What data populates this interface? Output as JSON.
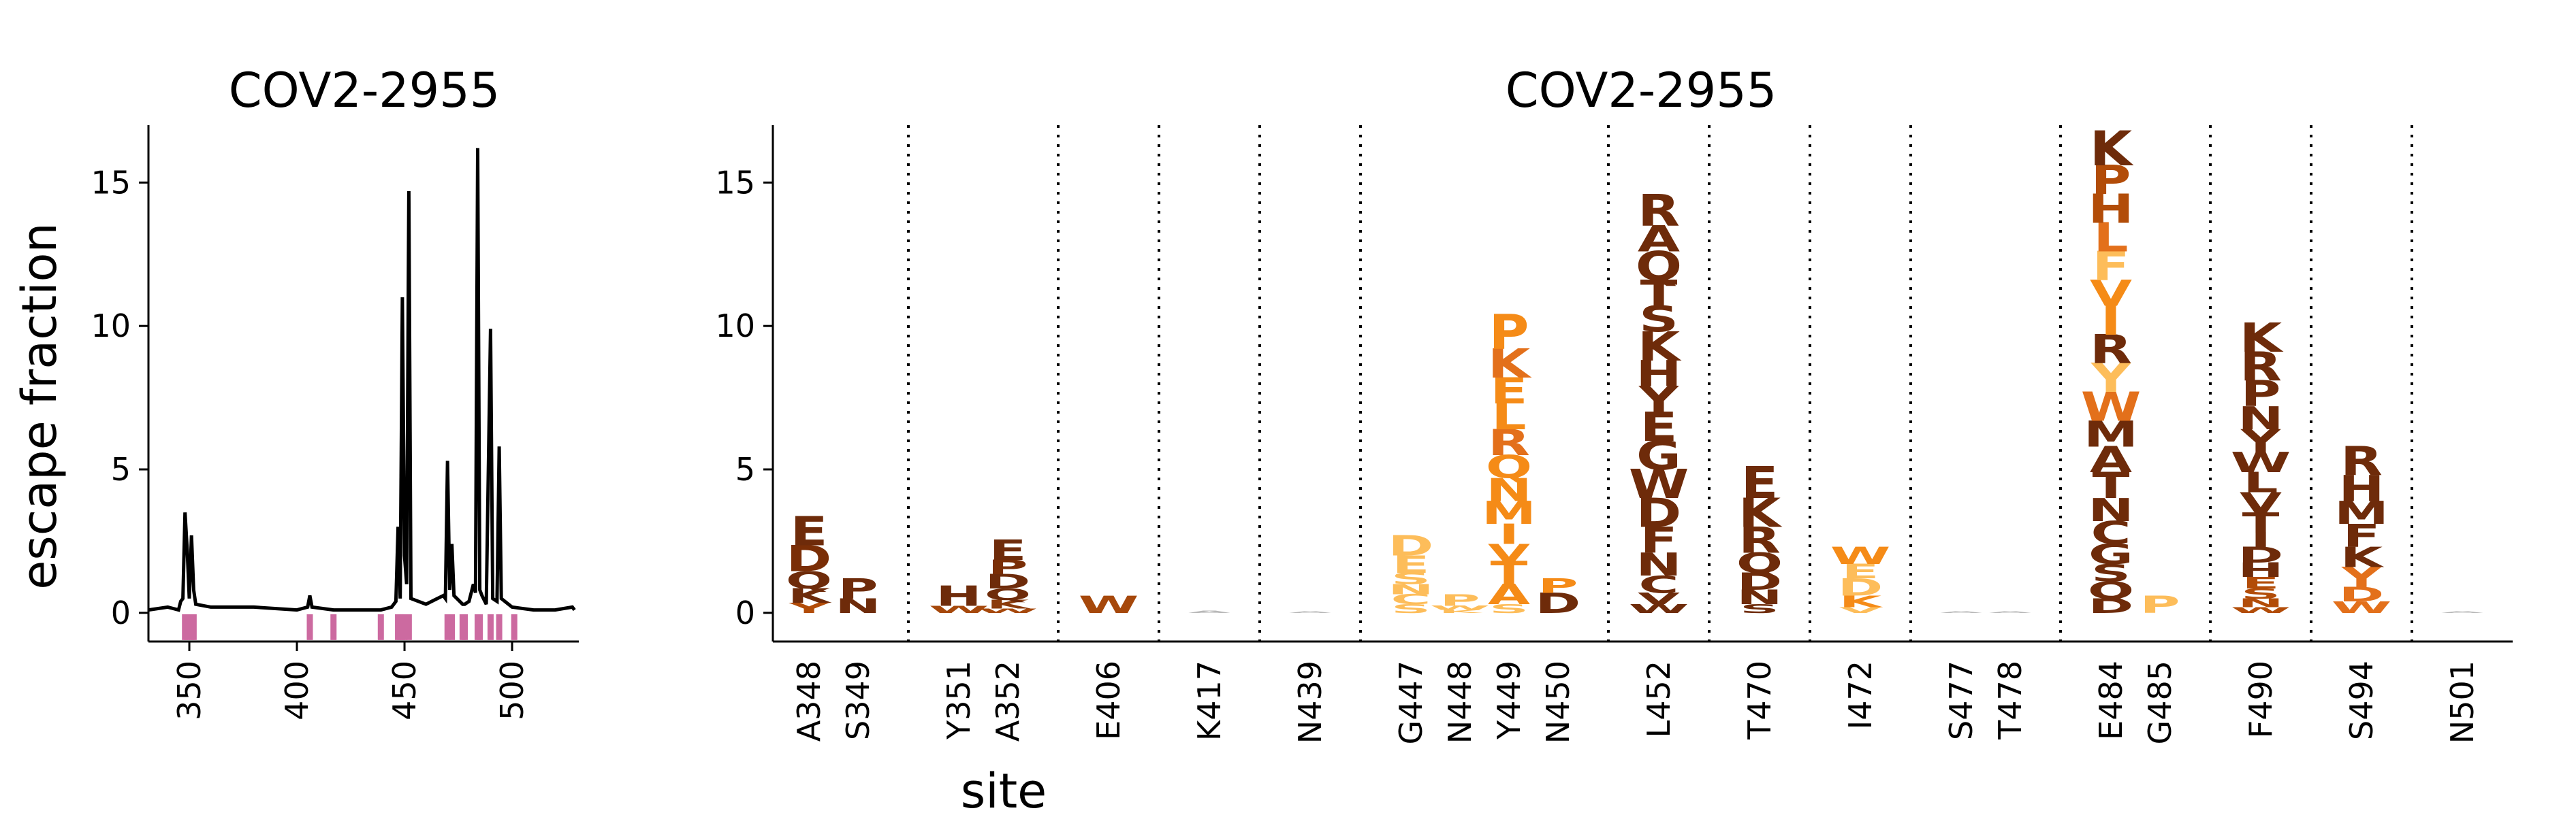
{
  "chart_data": [
    {
      "type": "line",
      "title": "COV2-2955",
      "ylabel": "escape fraction",
      "xlim": [
        331,
        531
      ],
      "ylim": [
        -1,
        17
      ],
      "xticks": [
        "350",
        "400",
        "450",
        "500"
      ],
      "yticks": [
        "0",
        "5",
        "10",
        "15"
      ],
      "series": [
        {
          "name": "",
          "color": "#000000",
          "points": [
            [
              331,
              0.1
            ],
            [
              340,
              0.2
            ],
            [
              345,
              0.1
            ],
            [
              346,
              0.4
            ],
            [
              347,
              0.5
            ],
            [
              348,
              3.5
            ],
            [
              349,
              2.2
            ],
            [
              350,
              0.5
            ],
            [
              351,
              2.7
            ],
            [
              352,
              0.8
            ],
            [
              353,
              0.3
            ],
            [
              360,
              0.2
            ],
            [
              380,
              0.2
            ],
            [
              400,
              0.1
            ],
            [
              405,
              0.2
            ],
            [
              406,
              0.6
            ],
            [
              407,
              0.2
            ],
            [
              417,
              0.1
            ],
            [
              439,
              0.1
            ],
            [
              444,
              0.2
            ],
            [
              446,
              0.4
            ],
            [
              447,
              3.0
            ],
            [
              448,
              0.5
            ],
            [
              449,
              11.0
            ],
            [
              450,
              2.0
            ],
            [
              451,
              1.0
            ],
            [
              452,
              14.7
            ],
            [
              453,
              0.5
            ],
            [
              460,
              0.3
            ],
            [
              468,
              0.6
            ],
            [
              469,
              0.5
            ],
            [
              470,
              5.3
            ],
            [
              471,
              0.8
            ],
            [
              472,
              2.4
            ],
            [
              473,
              0.6
            ],
            [
              477,
              0.3
            ],
            [
              478,
              0.3
            ],
            [
              480,
              0.4
            ],
            [
              482,
              1.0
            ],
            [
              483,
              0.7
            ],
            [
              484,
              16.2
            ],
            [
              485,
              0.8
            ],
            [
              486,
              0.6
            ],
            [
              488,
              0.3
            ],
            [
              490,
              9.9
            ],
            [
              491,
              0.5
            ],
            [
              493,
              0.4
            ],
            [
              494,
              5.8
            ],
            [
              495,
              0.5
            ],
            [
              500,
              0.2
            ],
            [
              510,
              0.1
            ],
            [
              520,
              0.1
            ],
            [
              528,
              0.2
            ],
            [
              529,
              0.1
            ]
          ]
        }
      ],
      "highlight_color": "#cc6aa0",
      "highlighted_sites": [
        348,
        349,
        351,
        352,
        406,
        417,
        439,
        447,
        448,
        449,
        450,
        452,
        470,
        472,
        477,
        478,
        484,
        485,
        490,
        494,
        501
      ]
    },
    {
      "type": "logo",
      "title": "COV2-2955",
      "xlabel": "site",
      "ylim": [
        -1,
        17
      ],
      "yticks": [
        "0",
        "5",
        "10",
        "15"
      ],
      "sites": [
        {
          "label": "A348",
          "group": 0,
          "letters": [
            [
              "Y",
              0.35,
              "#b24c08"
            ],
            [
              "K",
              0.5,
              "#6e2b0a"
            ],
            [
              "Q",
              0.6,
              "#6e2b0a"
            ],
            [
              "D",
              0.9,
              "#7a2e06"
            ],
            [
              "E",
              1.0,
              "#6e2b0a"
            ]
          ]
        },
        {
          "label": "S349",
          "group": 0,
          "letters": [
            [
              "N",
              0.5,
              "#6e2b0a"
            ],
            [
              "P",
              0.7,
              "#6e2b0a"
            ]
          ]
        },
        {
          "label": "Y351",
          "group": 1,
          "letters": [
            [
              "W",
              0.25,
              "#a6480b"
            ],
            [
              "H",
              0.7,
              "#6e2b0a"
            ]
          ]
        },
        {
          "label": "A352",
          "group": 1,
          "letters": [
            [
              "W",
              0.15,
              "#a6480b"
            ],
            [
              "K",
              0.3,
              "#8a3a0a"
            ],
            [
              "Q",
              0.4,
              "#6e2b0a"
            ],
            [
              "D",
              0.5,
              "#6e2b0a"
            ],
            [
              "P",
              0.5,
              "#7a2e06"
            ],
            [
              "E",
              0.7,
              "#6e2b0a"
            ]
          ]
        },
        {
          "label": "E406",
          "group": 2,
          "letters": [
            [
              "W",
              0.6,
              "#a6480b"
            ]
          ]
        },
        {
          "label": "K417",
          "group": 3,
          "letters": [
            [
              "A",
              0.08,
              "#b8b8b8"
            ]
          ]
        },
        {
          "label": "N439",
          "group": 4,
          "letters": [
            [
              "A",
              0.06,
              "#b8b8b8"
            ]
          ]
        },
        {
          "label": "G447",
          "group": 5,
          "letters": [
            [
              "S",
              0.3,
              "#fdbd5a"
            ],
            [
              "C",
              0.35,
              "#fdbd5a"
            ],
            [
              "N",
              0.35,
              "#fdbd5a"
            ],
            [
              "S",
              0.4,
              "#fdbd5a"
            ],
            [
              "E",
              0.6,
              "#fdbd5a"
            ],
            [
              "D",
              0.7,
              "#fdbd5a"
            ]
          ]
        },
        {
          "label": "N448",
          "group": 5,
          "letters": [
            [
              "K",
              0.1,
              "#fdbd5a"
            ],
            [
              "W",
              0.15,
              "#fdbd5a"
            ],
            [
              "P",
              0.4,
              "#fdbd5a"
            ]
          ]
        },
        {
          "label": "Y449",
          "group": 5,
          "letters": [
            [
              "S",
              0.3,
              "#fdbd5a"
            ],
            [
              "A",
              0.7,
              "#f58b17"
            ],
            [
              "T",
              0.8,
              "#f58b17"
            ],
            [
              "V",
              0.6,
              "#f58b17"
            ],
            [
              "I",
              0.7,
              "#f58b17"
            ],
            [
              "M",
              0.8,
              "#f58b17"
            ],
            [
              "N",
              0.8,
              "#f58b17"
            ],
            [
              "Q",
              0.8,
              "#f58b17"
            ],
            [
              "R",
              0.9,
              "#e3701b"
            ],
            [
              "L",
              0.9,
              "#f58b17"
            ],
            [
              "E",
              0.9,
              "#f58b17"
            ],
            [
              "K",
              1.0,
              "#e3701b"
            ],
            [
              "P",
              1.2,
              "#f58b17"
            ]
          ]
        },
        {
          "label": "N450",
          "group": 5,
          "letters": [
            [
              "D",
              0.7,
              "#6e2b0a"
            ],
            [
              "P",
              0.5,
              "#f58b17"
            ]
          ]
        },
        {
          "label": "L452",
          "group": 6,
          "letters": [
            [
              "W",
              0.3,
              "#6e2b0a"
            ],
            [
              "V",
              0.4,
              "#6e2b0a"
            ],
            [
              "C",
              0.6,
              "#6e2b0a"
            ],
            [
              "N",
              0.8,
              "#6e2b0a"
            ],
            [
              "F",
              0.9,
              "#6e2b0a"
            ],
            [
              "D",
              1.0,
              "#6e2b0a"
            ],
            [
              "W",
              1.0,
              "#6e2b0a"
            ],
            [
              "G",
              1.0,
              "#6e2b0a"
            ],
            [
              "E",
              1.0,
              "#6e2b0a"
            ],
            [
              "Y",
              0.9,
              "#6e2b0a"
            ],
            [
              "H",
              0.9,
              "#6e2b0a"
            ],
            [
              "K",
              1.0,
              "#6e2b0a"
            ],
            [
              "S",
              0.9,
              "#6e2b0a"
            ],
            [
              "T",
              0.9,
              "#6e2b0a"
            ],
            [
              "Q",
              1.0,
              "#6e2b0a"
            ],
            [
              "A",
              0.9,
              "#6e2b0a"
            ],
            [
              "R",
              1.1,
              "#6e2b0a"
            ]
          ]
        },
        {
          "label": "T470",
          "group": 7,
          "letters": [
            [
              "S",
              0.3,
              "#6e2b0a"
            ],
            [
              "N",
              0.5,
              "#6e2b0a"
            ],
            [
              "D",
              0.6,
              "#6e2b0a"
            ],
            [
              "Q",
              0.7,
              "#6e2b0a"
            ],
            [
              "R",
              0.9,
              "#6e2b0a"
            ],
            [
              "K",
              1.0,
              "#6e2b0a"
            ],
            [
              "E",
              1.1,
              "#6e2b0a"
            ]
          ]
        },
        {
          "label": "I472",
          "group": 8,
          "letters": [
            [
              "V",
              0.2,
              "#fdbd5a"
            ],
            [
              "K",
              0.4,
              "#f58b17"
            ],
            [
              "D",
              0.6,
              "#fdbd5a"
            ],
            [
              "E",
              0.5,
              "#fdbd5a"
            ],
            [
              "W",
              0.6,
              "#f58b17"
            ]
          ]
        },
        {
          "label": "S477",
          "group": 9,
          "letters": [
            [
              "A",
              0.06,
              "#b8b8b8"
            ]
          ]
        },
        {
          "label": "T478",
          "group": 9,
          "letters": [
            [
              "A",
              0.06,
              "#b8b8b8"
            ]
          ]
        },
        {
          "label": "E484",
          "group": 10,
          "letters": [
            [
              "D",
              0.5,
              "#6e2b0a"
            ],
            [
              "Q",
              0.6,
              "#6e2b0a"
            ],
            [
              "S",
              0.6,
              "#6e2b0a"
            ],
            [
              "G",
              0.7,
              "#6e2b0a"
            ],
            [
              "C",
              0.8,
              "#6e2b0a"
            ],
            [
              "N",
              0.8,
              "#6e2b0a"
            ],
            [
              "T",
              0.9,
              "#6e2b0a"
            ],
            [
              "A",
              0.9,
              "#6e2b0a"
            ],
            [
              "M",
              0.9,
              "#6e2b0a"
            ],
            [
              "W",
              1.0,
              "#e3701b"
            ],
            [
              "Y",
              1.0,
              "#fdbd5a"
            ],
            [
              "R",
              1.0,
              "#6e2b0a"
            ],
            [
              "I",
              1.0,
              "#f58b17"
            ],
            [
              "V",
              0.9,
              "#f58b17"
            ],
            [
              "F",
              1.0,
              "#fdbd5a"
            ],
            [
              "L",
              1.0,
              "#e3701b"
            ],
            [
              "H",
              1.0,
              "#b24c08"
            ],
            [
              "P",
              1.0,
              "#b24c08"
            ],
            [
              "K",
              1.2,
              "#6e2b0a"
            ]
          ]
        },
        {
          "label": "G485",
          "group": 10,
          "letters": [
            [
              "P",
              0.6,
              "#fdbd5a"
            ]
          ]
        },
        {
          "label": "F490",
          "group": 11,
          "letters": [
            [
              "W",
              0.2,
              "#b24c08"
            ],
            [
              "N",
              0.3,
              "#b24c08"
            ],
            [
              "S",
              0.35,
              "#b24c08"
            ],
            [
              "E",
              0.4,
              "#b24c08"
            ],
            [
              "H",
              0.5,
              "#6e2b0a"
            ],
            [
              "D",
              0.55,
              "#6e2b0a"
            ],
            [
              "I",
              0.5,
              "#6e2b0a"
            ],
            [
              "T",
              0.7,
              "#6e2b0a"
            ],
            [
              "V",
              0.7,
              "#6e2b0a"
            ],
            [
              "L",
              0.7,
              "#6e2b0a"
            ],
            [
              "W",
              0.7,
              "#6e2b0a"
            ],
            [
              "Y",
              0.8,
              "#6e2b0a"
            ],
            [
              "N",
              0.8,
              "#6e2b0a"
            ],
            [
              "P",
              0.9,
              "#6e2b0a"
            ],
            [
              "R",
              1.0,
              "#6e2b0a"
            ],
            [
              "K",
              1.0,
              "#6e2b0a"
            ]
          ]
        },
        {
          "label": "S494",
          "group": 12,
          "letters": [
            [
              "W",
              0.4,
              "#e3701b"
            ],
            [
              "D",
              0.5,
              "#e3701b"
            ],
            [
              "Y",
              0.7,
              "#e3701b"
            ],
            [
              "K",
              0.7,
              "#6e2b0a"
            ],
            [
              "F",
              0.8,
              "#6e2b0a"
            ],
            [
              "M",
              0.8,
              "#6e2b0a"
            ],
            [
              "H",
              0.9,
              "#6e2b0a"
            ],
            [
              "R",
              1.0,
              "#6e2b0a"
            ]
          ]
        },
        {
          "label": "N501",
          "group": 13,
          "letters": [
            [
              "A",
              0.06,
              "#b8b8b8"
            ]
          ]
        }
      ]
    }
  ]
}
